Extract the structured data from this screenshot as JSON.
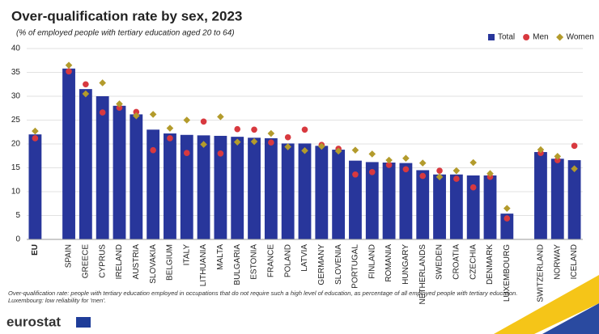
{
  "chart_data": {
    "type": "bar",
    "title": "Over-qualification rate by sex, 2023",
    "subtitle": "(% of employed people with tertiary education aged 20 to 64)",
    "categories": [
      "EU",
      null,
      "SPAIN",
      "GREECE",
      "CYPRUS",
      "IRELAND",
      "AUSTRIA",
      "SLOVAKIA",
      "BELGIUM",
      "ITALY",
      "LITHUANIA",
      "MALTA",
      "BULGARIA",
      "ESTONIA",
      "FRANCE",
      "POLAND",
      "LATVIA",
      "GERMANY",
      "SLOVENIA",
      "PORTUGAL",
      "FINLAND",
      "ROMANIA",
      "HUNGARY",
      "NETHERLANDS",
      "SWEDEN",
      "CROATIA",
      "CZECHIA",
      "DENMARK",
      "LUXEMBOURG",
      null,
      "SWITZERLAND",
      "NORWAY",
      "ICELAND"
    ],
    "series": [
      {
        "name": "Total",
        "marker": "bar",
        "color": "#28369b",
        "values": [
          22.0,
          null,
          35.8,
          31.5,
          30.0,
          28.0,
          26.2,
          23.0,
          22.2,
          21.9,
          21.8,
          21.7,
          21.5,
          21.3,
          21.2,
          20.1,
          20.1,
          19.6,
          18.8,
          16.5,
          16.2,
          16.1,
          16.0,
          14.5,
          13.6,
          13.6,
          13.4,
          13.4,
          5.4,
          null,
          18.3,
          16.9,
          16.6
        ]
      },
      {
        "name": "Men",
        "marker": "circle",
        "color": "#d8393f",
        "values": [
          21.2,
          null,
          35.2,
          32.5,
          26.6,
          27.6,
          26.7,
          18.7,
          21.2,
          18.1,
          24.7,
          18.0,
          23.1,
          23.0,
          20.3,
          21.4,
          23.0,
          19.8,
          19.0,
          13.6,
          14.1,
          15.6,
          14.7,
          13.3,
          14.4,
          12.7,
          10.9,
          13.1,
          4.4,
          null,
          18.1,
          16.6,
          19.6
        ]
      },
      {
        "name": "Women",
        "marker": "diamond",
        "color": "#b39b2c",
        "values": [
          22.7,
          null,
          36.5,
          30.5,
          32.8,
          28.4,
          25.9,
          26.2,
          23.3,
          25.0,
          19.9,
          25.7,
          20.4,
          20.5,
          22.2,
          19.4,
          18.6,
          19.5,
          18.5,
          18.7,
          17.9,
          16.6,
          17.0,
          16.0,
          13.1,
          14.4,
          16.1,
          13.8,
          6.5,
          null,
          18.8,
          17.4,
          14.8
        ]
      }
    ],
    "ylim": [
      0,
      40
    ],
    "yticks": [
      0,
      5,
      10,
      15,
      20,
      25,
      30,
      35,
      40
    ],
    "grid": true,
    "legend": "top-right",
    "notes": [
      "Over-qualification rate: people with tertiary education employed in occupations that do not require such a high level of education, as percentage of all employed people with tertiary education.",
      "Luxembourg: low reliability for 'men'."
    ],
    "source": "eurostat"
  }
}
